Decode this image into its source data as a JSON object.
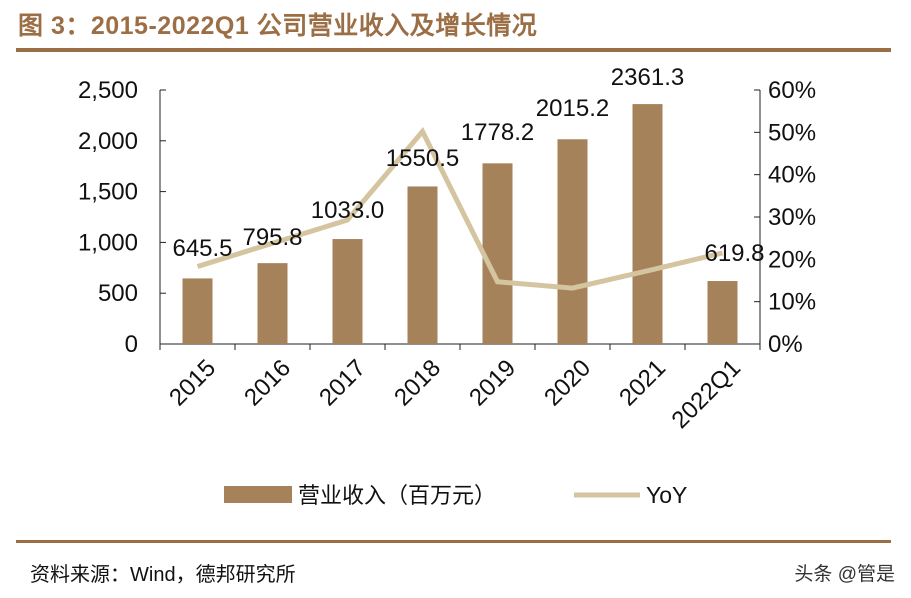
{
  "title": "图 3：2015-2022Q1 公司营业收入及增长情况",
  "source": "资料来源：Wind，德邦研究所",
  "watermark": "头条 @管是",
  "colors": {
    "bar": "#a5825a",
    "line": "#d4c4a0",
    "title": "#9b6e45"
  },
  "chart_data": {
    "type": "bar+line",
    "categories": [
      "2015",
      "2016",
      "2017",
      "2018",
      "2019",
      "2020",
      "2021",
      "2022Q1"
    ],
    "series": [
      {
        "name": "营业收入（百万元）",
        "type": "bar",
        "axis": "left",
        "values": [
          645.5,
          795.8,
          1033.0,
          1550.5,
          1778.2,
          2015.2,
          2361.3,
          619.8
        ],
        "labels": [
          "645.5",
          "795.8",
          "1033.0",
          "1550.5",
          "1778.2",
          "2015.2",
          "2361.3",
          "619.8"
        ]
      },
      {
        "name": "YoY",
        "type": "line",
        "axis": "right",
        "values": [
          18.3,
          23.8,
          29.3,
          50.2,
          14.7,
          13.2,
          17.3,
          21.5
        ]
      }
    ],
    "ylim_left": [
      0,
      2500
    ],
    "yticks_left": [
      "0",
      "500",
      "1,000",
      "1,500",
      "2,000",
      "2,500"
    ],
    "ylim_right": [
      0,
      60
    ],
    "yticks_right": [
      "0%",
      "10%",
      "20%",
      "30%",
      "40%",
      "50%",
      "60%"
    ],
    "grid": false,
    "legend": "bottom"
  }
}
